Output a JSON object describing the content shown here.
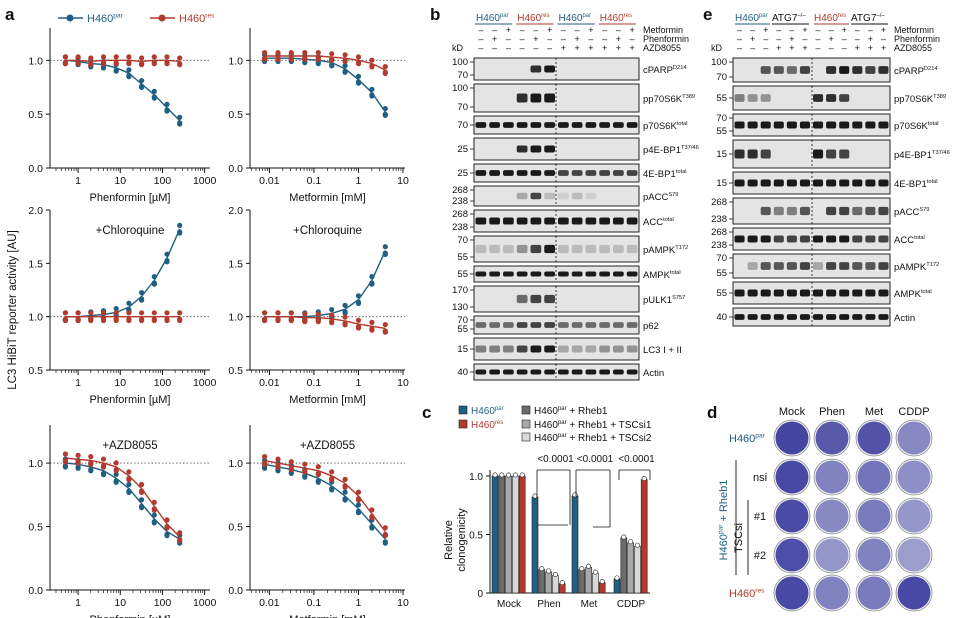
{
  "panels": {
    "a": "a",
    "b": "b",
    "c": "c",
    "d": "d",
    "e": "e"
  },
  "colors": {
    "par": "#1f5f82",
    "res": "#b23a2e",
    "mock_gray": "#3a3a3a",
    "gray1": "#6b6b6b",
    "gray2": "#a8a8a8",
    "gray3": "#d9d9d9",
    "blot_bg": "#e4e4e4",
    "blot_band": "#1a1a1a",
    "crystal": "#3d3e9e"
  },
  "panel_a": {
    "ylabel": "LC3 HiBiT reporter activity [AU]",
    "legend": {
      "par": "H460",
      "par_sup": "par",
      "res": "H460",
      "res_sup": "res"
    },
    "rows": [
      {
        "label": "",
        "left_xlabel": "Phenformin [µM]",
        "right_xlabel": "Metformin [mM]",
        "yticks": [
          "1.0",
          "0.5",
          "0.0"
        ]
      },
      {
        "label": "+Chloroquine",
        "left_xlabel": "Phenformin [µM]",
        "right_xlabel": "Metformin [mM]",
        "yticks": [
          "2.0",
          "1.5",
          "1.0",
          "0.5"
        ]
      },
      {
        "label": "+AZD8055",
        "left_xlabel": "Phenformin [µM]",
        "right_xlabel": "Metformin [mM]",
        "yticks": [
          "1.0",
          "0.5",
          "0.0"
        ]
      }
    ],
    "left_xticks": [
      "1",
      "10",
      "100",
      "1000"
    ],
    "right_xticks": [
      "0.01",
      "0.1",
      "1",
      "10"
    ]
  },
  "chart_data": [
    {
      "type": "scatter",
      "panel": "a-top-left",
      "xlabel": "Phenformin [µM]",
      "ylabel": "LC3 HiBiT reporter activity [AU]",
      "xscale": "log",
      "ylim": [
        0,
        1.3
      ],
      "series": [
        {
          "name": "H460par",
          "x": [
            0.5,
            1,
            2,
            4,
            8,
            16,
            32,
            64,
            128,
            256
          ],
          "y": [
            1.0,
            0.99,
            0.97,
            0.96,
            0.93,
            0.88,
            0.78,
            0.68,
            0.56,
            0.44
          ]
        },
        {
          "name": "H460res",
          "x": [
            0.5,
            1,
            2,
            4,
            8,
            16,
            32,
            64,
            128,
            256
          ],
          "y": [
            1.0,
            1.0,
            0.99,
            1.0,
            1.0,
            1.0,
            0.99,
            1.0,
            1.0,
            0.99
          ]
        }
      ]
    },
    {
      "type": "scatter",
      "panel": "a-top-right",
      "xlabel": "Metformin [mM]",
      "xscale": "log",
      "ylim": [
        0,
        1.3
      ],
      "series": [
        {
          "name": "H460par",
          "x": [
            0.0078,
            0.0156,
            0.031,
            0.0625,
            0.125,
            0.25,
            0.5,
            1,
            2,
            4
          ],
          "y": [
            1.02,
            1.02,
            1.02,
            1.01,
            1.0,
            0.98,
            0.92,
            0.82,
            0.7,
            0.52
          ]
        },
        {
          "name": "H460res",
          "x": [
            0.0078,
            0.0156,
            0.031,
            0.0625,
            0.125,
            0.25,
            0.5,
            1,
            2,
            4
          ],
          "y": [
            1.04,
            1.04,
            1.04,
            1.04,
            1.04,
            1.03,
            1.02,
            1.0,
            0.97,
            0.91
          ]
        }
      ]
    },
    {
      "type": "scatter",
      "panel": "a-mid-left",
      "label": "+Chloroquine",
      "xlabel": "Phenformin [µM]",
      "xscale": "log",
      "ylim": [
        0.5,
        2.0
      ],
      "series": [
        {
          "name": "H460par",
          "x": [
            0.5,
            1,
            2,
            4,
            8,
            16,
            32,
            64,
            128,
            256
          ],
          "y": [
            1.0,
            1.0,
            1.01,
            1.02,
            1.04,
            1.09,
            1.19,
            1.34,
            1.55,
            1.82
          ]
        },
        {
          "name": "H460res",
          "x": [
            0.5,
            1,
            2,
            4,
            8,
            16,
            32,
            64,
            128,
            256
          ],
          "y": [
            1.0,
            1.0,
            1.0,
            1.0,
            1.0,
            1.0,
            1.0,
            1.0,
            1.0,
            1.0
          ]
        }
      ]
    },
    {
      "type": "scatter",
      "panel": "a-mid-right",
      "label": "+Chloroquine",
      "xlabel": "Metformin [mM]",
      "xscale": "log",
      "ylim": [
        0.5,
        2.0
      ],
      "series": [
        {
          "name": "H460par",
          "x": [
            0.0078,
            0.0156,
            0.031,
            0.0625,
            0.125,
            0.25,
            0.5,
            1,
            2,
            4
          ],
          "y": [
            1.0,
            1.0,
            1.0,
            1.0,
            1.01,
            1.03,
            1.07,
            1.16,
            1.34,
            1.62
          ]
        },
        {
          "name": "H460res",
          "x": [
            0.0078,
            0.0156,
            0.031,
            0.0625,
            0.125,
            0.25,
            0.5,
            1,
            2,
            4
          ],
          "y": [
            1.0,
            1.0,
            1.0,
            0.99,
            0.99,
            0.98,
            0.96,
            0.93,
            0.91,
            0.89
          ]
        }
      ]
    },
    {
      "type": "scatter",
      "panel": "a-bottom-left",
      "label": "+AZD8055",
      "xlabel": "Phenformin [µM]",
      "xscale": "log",
      "ylim": [
        0,
        1.3
      ],
      "series": [
        {
          "name": "H460par",
          "x": [
            0.5,
            1,
            2,
            4,
            8,
            16,
            32,
            64,
            128,
            256
          ],
          "y": [
            1.0,
            0.99,
            0.97,
            0.94,
            0.88,
            0.8,
            0.68,
            0.56,
            0.46,
            0.4
          ]
        },
        {
          "name": "H460res",
          "x": [
            0.5,
            1,
            2,
            4,
            8,
            16,
            32,
            64,
            128,
            256
          ],
          "y": [
            1.04,
            1.03,
            1.02,
            1.0,
            0.97,
            0.9,
            0.8,
            0.66,
            0.52,
            0.42
          ]
        }
      ]
    },
    {
      "type": "scatter",
      "panel": "a-bottom-right",
      "label": "+AZD8055",
      "xlabel": "Metformin [mM]",
      "xscale": "log",
      "ylim": [
        0,
        1.3
      ],
      "series": [
        {
          "name": "H460par",
          "x": [
            0.0078,
            0.0156,
            0.031,
            0.0625,
            0.125,
            0.25,
            0.5,
            1,
            2,
            4
          ],
          "y": [
            0.99,
            0.97,
            0.95,
            0.92,
            0.88,
            0.82,
            0.74,
            0.64,
            0.52,
            0.4
          ]
        },
        {
          "name": "H460res",
          "x": [
            0.0078,
            0.0156,
            0.031,
            0.0625,
            0.125,
            0.25,
            0.5,
            1,
            2,
            4
          ],
          "y": [
            1.02,
            1.0,
            0.98,
            0.96,
            0.94,
            0.9,
            0.84,
            0.74,
            0.6,
            0.46
          ]
        }
      ]
    },
    {
      "type": "bar",
      "panel": "c",
      "ylabel": "Relative clonogenicity",
      "categories": [
        "Mock",
        "Phen",
        "Met",
        "CDDP"
      ],
      "ylim": [
        0,
        1.0
      ],
      "series": [
        {
          "name": "H460par",
          "values": [
            1.0,
            0.82,
            0.83,
            0.12
          ]
        },
        {
          "name": "H460res",
          "values": [
            1.0,
            0.08,
            0.09,
            0.97
          ]
        },
        {
          "name": "H460par + Rheb1",
          "values": [
            1.0,
            0.2,
            0.2,
            0.47
          ]
        },
        {
          "name": "H460par + Rheb1 + TSCsi1",
          "values": [
            1.0,
            0.18,
            0.22,
            0.43
          ]
        },
        {
          "name": "H460par + Rheb1 + TSCsi2",
          "values": [
            1.0,
            0.15,
            0.17,
            0.4
          ]
        }
      ]
    }
  ],
  "panel_b": {
    "groups": [
      {
        "name": "H460",
        "sup": "par",
        "color": "par"
      },
      {
        "name": "H460",
        "sup": "res",
        "color": "res"
      },
      {
        "name": "H460",
        "sup": "par",
        "color": "par"
      },
      {
        "name": "H460",
        "sup": "res",
        "color": "res"
      }
    ],
    "treat_labels": [
      "Metformin",
      "Phenformin",
      "AZD8055"
    ],
    "treat_rows": [
      [
        "–",
        "–",
        "+",
        "–",
        "–",
        "+",
        "–",
        "–",
        "+",
        "–",
        "–",
        "+"
      ],
      [
        "–",
        "+",
        "–",
        "–",
        "+",
        "–",
        "–",
        "+",
        "–",
        "–",
        "+",
        "–"
      ],
      [
        "–",
        "–",
        "–",
        "–",
        "–",
        "–",
        "+",
        "+",
        "+",
        "+",
        "+",
        "+"
      ]
    ],
    "kd": "kD",
    "blots": [
      {
        "label": "cPARP",
        "sup": "D214",
        "mw": [
          "100",
          "70"
        ]
      },
      {
        "label": "pp70S6K",
        "sup": "T389",
        "mw": [
          "100",
          "70"
        ]
      },
      {
        "label": "p70S6K",
        "sup": "total",
        "mw": [
          "70"
        ]
      },
      {
        "label": "p4E-BP1",
        "sup": "T37/46",
        "mw": [
          "25"
        ]
      },
      {
        "label": "4E-BP1",
        "sup": "total",
        "mw": [
          "25"
        ]
      },
      {
        "label": "pACC",
        "sup": "S79",
        "mw": [
          "268",
          "238"
        ]
      },
      {
        "label": "ACC",
        "sup": "total",
        "mw": [
          "268",
          "238"
        ]
      },
      {
        "label": "pAMPK",
        "sup": "T172",
        "mw": [
          "70",
          "55"
        ]
      },
      {
        "label": "AMPK",
        "sup": "total",
        "mw": [
          "55"
        ]
      },
      {
        "label": "pULK1",
        "sup": "S757",
        "mw": [
          "170",
          "130"
        ]
      },
      {
        "label": "p62",
        "sup": "",
        "mw": [
          "70",
          "55"
        ]
      },
      {
        "label": "LC3 I + II",
        "sup": "",
        "mw": [
          "15"
        ]
      },
      {
        "label": "Actin",
        "sup": "",
        "mw": [
          "40"
        ]
      }
    ]
  },
  "panel_c": {
    "legend": [
      {
        "text": "H460",
        "sup": "par",
        "color": "par"
      },
      {
        "text": "H460",
        "sup": "res",
        "color": "res"
      },
      {
        "text": "H460",
        "sup": "par",
        "extra": " + Rheb1",
        "color": "gray1"
      },
      {
        "text": "H460",
        "sup": "par",
        "extra": " + Rheb1 + TSCsi1",
        "color": "gray2"
      },
      {
        "text": "H460",
        "sup": "par",
        "extra": " + Rheb1 + TSCsi2",
        "color": "gray3"
      }
    ],
    "ylabel": "Relative clonogenicity",
    "yticks": [
      "1.0",
      "0.5",
      "0"
    ],
    "pvalue": "<0.0001"
  },
  "panel_d": {
    "cols": [
      "Mock",
      "Phen",
      "Met",
      "CDDP"
    ],
    "rows": [
      "H460",
      "nsi",
      "#1",
      "#2",
      "H460"
    ],
    "row_sups": [
      "par",
      "",
      "",
      "",
      "res"
    ],
    "side_label": "H460",
    "side_sup": "par",
    "side_rest": " + Rheb1",
    "tscsi": "TSCsi",
    "wells": [
      [
        0.95,
        0.8,
        0.85,
        0.45
      ],
      [
        0.92,
        0.5,
        0.6,
        0.4
      ],
      [
        0.9,
        0.45,
        0.55,
        0.35
      ],
      [
        0.88,
        0.35,
        0.5,
        0.3
      ],
      [
        0.92,
        0.5,
        0.55,
        0.92
      ]
    ]
  },
  "panel_e": {
    "groups": [
      {
        "name": "H460",
        "sup": "par",
        "color": "par"
      },
      {
        "name": "ATG7",
        "sup": "–/–",
        "color": "black"
      },
      {
        "name": "H460",
        "sup": "res",
        "color": "res"
      },
      {
        "name": "ATG7",
        "sup": "–/–",
        "color": "black"
      }
    ],
    "treat_labels": [
      "Metformin",
      "Phenformin",
      "AZD8055"
    ],
    "treat_rows": [
      [
        "–",
        "–",
        "+",
        "–",
        "–",
        "+",
        "–",
        "–",
        "+",
        "–",
        "–",
        "+"
      ],
      [
        "–",
        "+",
        "–",
        "–",
        "+",
        "–",
        "–",
        "+",
        "–",
        "–",
        "+",
        "–"
      ],
      [
        "–",
        "–",
        "–",
        "+",
        "+",
        "+",
        "–",
        "–",
        "–",
        "+",
        "+",
        "+"
      ]
    ],
    "kd": "kD",
    "blots": [
      {
        "label": "cPARP",
        "sup": "D214",
        "mw": [
          "100",
          "70"
        ]
      },
      {
        "label": "pp70S6K",
        "sup": "T389",
        "mw": [
          "55"
        ]
      },
      {
        "label": "p70S6K",
        "sup": "total",
        "mw": [
          "70",
          "55"
        ]
      },
      {
        "label": "p4E-BP1",
        "sup": "T37/46",
        "mw": [
          "15"
        ]
      },
      {
        "label": "4E-BP1",
        "sup": "total",
        "mw": [
          "15"
        ]
      },
      {
        "label": "pACC",
        "sup": "S79",
        "mw": [
          "268",
          "238"
        ]
      },
      {
        "label": "ACC",
        "sup": "total",
        "mw": [
          "268",
          "238"
        ]
      },
      {
        "label": "pAMPK",
        "sup": "T172",
        "mw": [
          "70",
          "55"
        ]
      },
      {
        "label": "AMPK",
        "sup": "total",
        "mw": [
          "55"
        ]
      },
      {
        "label": "Actin",
        "sup": "",
        "mw": [
          "40"
        ]
      }
    ]
  }
}
